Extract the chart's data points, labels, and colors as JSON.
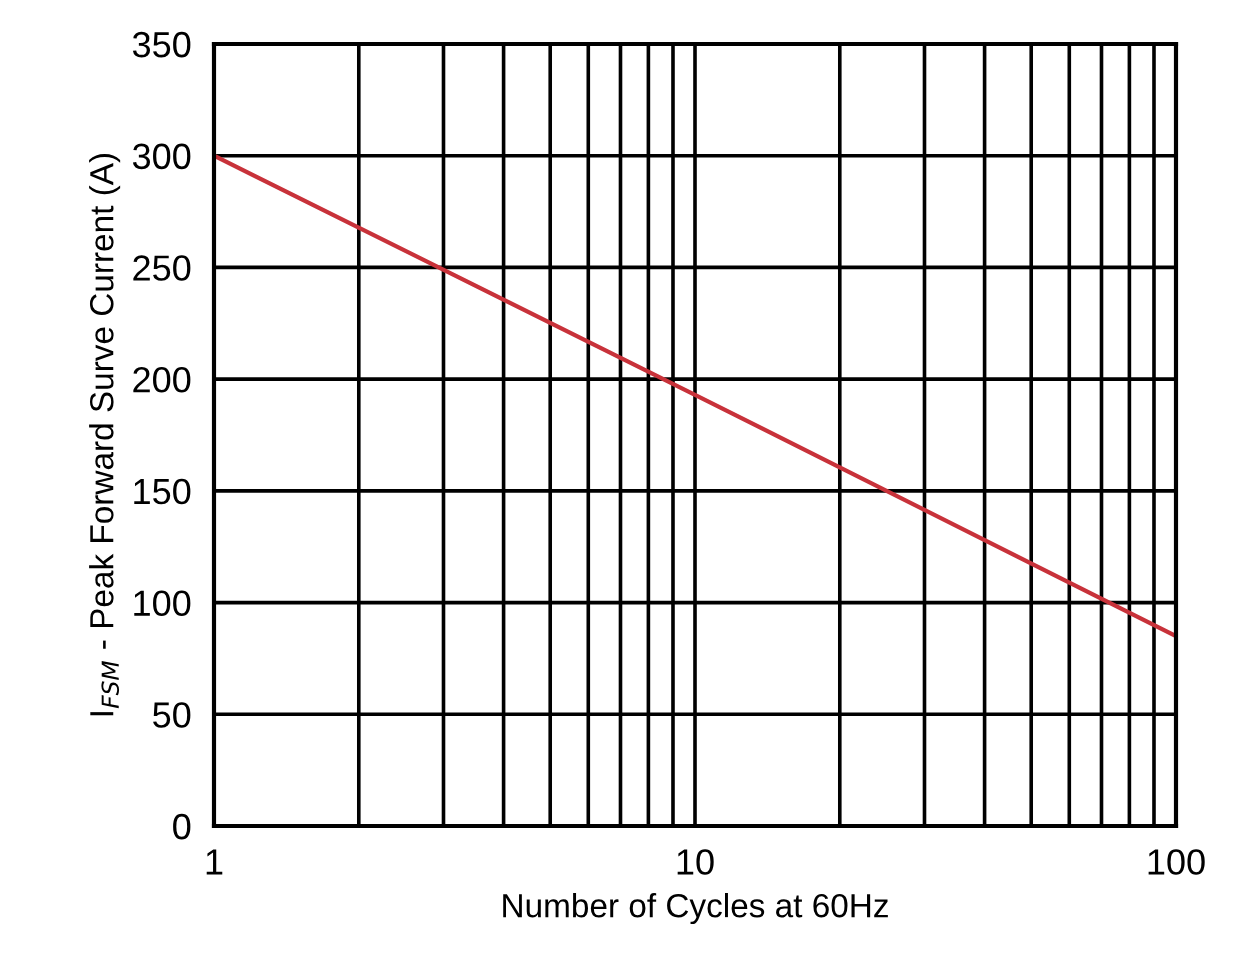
{
  "chart_data": {
    "type": "line",
    "xlabel": "Number of Cycles at 60Hz",
    "ylabel": "I$_{FSM}$ - Peak Forward Surve Current (A)",
    "log": "x",
    "grid": true,
    "x": [
      1,
      10,
      100
    ],
    "series": [
      {
        "color": "#c8323a",
        "values": [
          300,
          193,
          85
        ]
      }
    ],
    "xlim": [
      1,
      100
    ],
    "ylim": [
      0,
      350
    ],
    "xticks": [
      1,
      {
        "value": 2,
        "label": null
      },
      {
        "value": 3,
        "label": null
      },
      {
        "value": 4,
        "label": null
      },
      {
        "value": 5,
        "label": null
      },
      {
        "value": 6,
        "label": null
      },
      {
        "value": 7,
        "label": null
      },
      {
        "value": 8,
        "label": null
      },
      {
        "value": 9,
        "label": null
      },
      10,
      {
        "value": 20,
        "label": null
      },
      {
        "value": 30,
        "label": null
      },
      {
        "value": 40,
        "label": null
      },
      {
        "value": 50,
        "label": null
      },
      {
        "value": 60,
        "label": null
      },
      {
        "value": 70,
        "label": null
      },
      {
        "value": 80,
        "label": null
      },
      {
        "value": 90,
        "label": null
      },
      100
    ],
    "yticks": [
      0,
      50,
      100,
      150,
      200,
      250,
      300,
      350
    ]
  }
}
